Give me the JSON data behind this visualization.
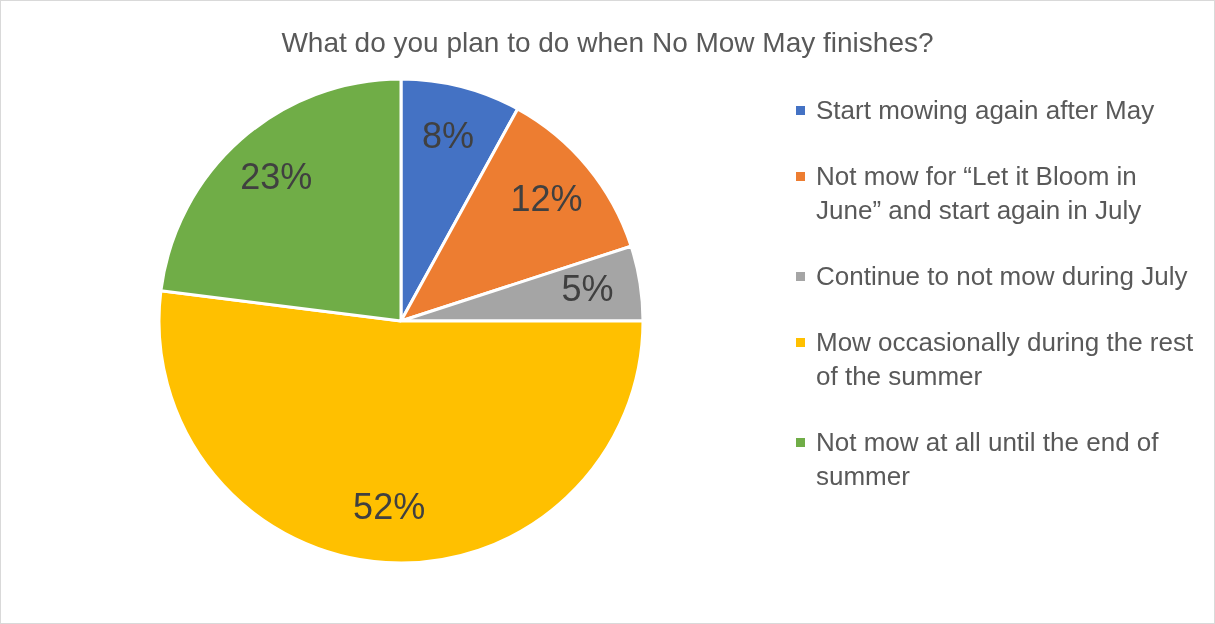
{
  "chart_data": {
    "type": "pie",
    "title": "What do you plan to do when No Mow May finishes?",
    "categories": [
      "Start mowing again after May",
      "Not mow for “Let it Bloom in June” and start again in July",
      "Continue to not mow during July",
      "Mow occasionally during the rest of the summer",
      "Not mow at all until the end of summer"
    ],
    "values": [
      8,
      12,
      5,
      52,
      23
    ],
    "colors": [
      "#4472c4",
      "#ed7d31",
      "#a5a5a5",
      "#ffc000",
      "#70ad47"
    ],
    "value_labels": [
      "8%",
      "12%",
      "5%",
      "52%",
      "23%"
    ],
    "legend": "right"
  }
}
